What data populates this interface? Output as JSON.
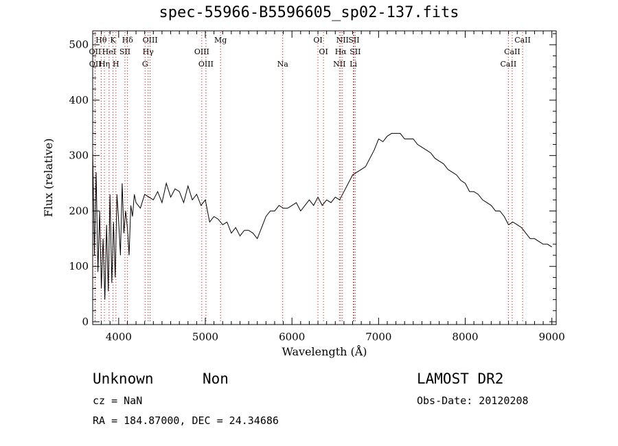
{
  "title": "spec-55966-B5596605_sp02-137.fits",
  "info": {
    "classification": "Unknown",
    "subclass": "Non",
    "survey": "LAMOST DR2",
    "cz": "cz = NaN",
    "obs_date": "Obs-Date: 20120208",
    "radec": "RA =  184.87000, DEC =   24.34686"
  },
  "colors": {
    "line_marker": "#cc0000",
    "spectrum": "#000000"
  },
  "chart_data": {
    "type": "line",
    "title": "spec-55966-B5596605_sp02-137.fits",
    "xlabel": "Wavelength (Å)",
    "ylabel": "Flux (relative)",
    "xlim": [
      3700,
      9050
    ],
    "ylim": [
      -5,
      525
    ],
    "xticks": [
      4000,
      5000,
      6000,
      7000,
      8000,
      9000
    ],
    "yticks": [
      0,
      100,
      200,
      300,
      400,
      500
    ],
    "grid": false,
    "series": [
      {
        "x": [
          3700,
          3720,
          3740,
          3760,
          3780,
          3800,
          3820,
          3840,
          3860,
          3880,
          3900,
          3920,
          3940,
          3960,
          3980,
          4000,
          4020,
          4040,
          4060,
          4080,
          4100,
          4120,
          4140,
          4160,
          4180,
          4200,
          4250,
          4300,
          4350,
          4400,
          4450,
          4500,
          4550,
          4600,
          4650,
          4700,
          4750,
          4800,
          4850,
          4900,
          4950,
          5000,
          5050,
          5100,
          5150,
          5200,
          5250,
          5300,
          5350,
          5400,
          5450,
          5500,
          5550,
          5600,
          5650,
          5700,
          5750,
          5800,
          5850,
          5900,
          5950,
          6000,
          6050,
          6100,
          6150,
          6200,
          6250,
          6300,
          6350,
          6400,
          6450,
          6500,
          6550,
          6600,
          6650,
          6700,
          6750,
          6800,
          6850,
          6900,
          6950,
          7000,
          7050,
          7100,
          7150,
          7200,
          7250,
          7300,
          7350,
          7400,
          7450,
          7500,
          7550,
          7600,
          7650,
          7700,
          7750,
          7800,
          7850,
          7900,
          7950,
          8000,
          8050,
          8100,
          8150,
          8200,
          8250,
          8300,
          8350,
          8400,
          8450,
          8500,
          8550,
          8600,
          8650,
          8700,
          8750,
          8800,
          8850,
          8900,
          8950,
          9000
        ],
        "y": [
          310,
          120,
          270,
          90,
          200,
          60,
          150,
          40,
          175,
          55,
          230,
          70,
          180,
          80,
          230,
          180,
          120,
          250,
          160,
          200,
          170,
          120,
          210,
          190,
          230,
          215,
          205,
          230,
          225,
          220,
          235,
          215,
          250,
          225,
          240,
          235,
          215,
          245,
          220,
          230,
          210,
          220,
          180,
          190,
          185,
          175,
          180,
          160,
          170,
          155,
          165,
          165,
          160,
          150,
          170,
          190,
          200,
          200,
          210,
          205,
          205,
          210,
          215,
          200,
          210,
          220,
          210,
          225,
          210,
          220,
          215,
          225,
          220,
          235,
          250,
          265,
          270,
          275,
          280,
          295,
          310,
          330,
          325,
          335,
          340,
          340,
          340,
          330,
          330,
          330,
          320,
          315,
          310,
          305,
          295,
          290,
          285,
          275,
          270,
          265,
          255,
          250,
          235,
          235,
          230,
          220,
          215,
          210,
          200,
          200,
          190,
          175,
          180,
          175,
          170,
          160,
          150,
          150,
          145,
          140,
          140,
          135
        ]
      }
    ],
    "line_labels": [
      {
        "text": "Hθ",
        "x": 3798,
        "row": 0
      },
      {
        "text": "K",
        "x": 3934,
        "row": 0
      },
      {
        "text": "Hδ",
        "x": 4102,
        "row": 0
      },
      {
        "text": "OIII",
        "x": 4363,
        "row": 0
      },
      {
        "text": "Mg",
        "x": 5175,
        "row": 0
      },
      {
        "text": "OI",
        "x": 6300,
        "row": 0
      },
      {
        "text": "NII",
        "x": 6583,
        "row": 0
      },
      {
        "text": "SII",
        "x": 6716,
        "row": 0
      },
      {
        "text": "CaII",
        "x": 8662,
        "row": 0
      },
      {
        "text": "OII",
        "x": 3727,
        "row": 1
      },
      {
        "text": "HeI",
        "x": 3889,
        "row": 1
      },
      {
        "text": "SII",
        "x": 4072,
        "row": 1
      },
      {
        "text": "Hγ",
        "x": 4340,
        "row": 1
      },
      {
        "text": "OIII",
        "x": 4959,
        "row": 1
      },
      {
        "text": "OI",
        "x": 6364,
        "row": 1
      },
      {
        "text": "Hα",
        "x": 6563,
        "row": 1
      },
      {
        "text": "SII",
        "x": 6731,
        "row": 1
      },
      {
        "text": "CaII",
        "x": 8542,
        "row": 1
      },
      {
        "text": "OII",
        "x": 3729,
        "row": 2
      },
      {
        "text": "Hη",
        "x": 3835,
        "row": 2
      },
      {
        "text": "H",
        "x": 3968,
        "row": 2
      },
      {
        "text": "G",
        "x": 4305,
        "row": 2
      },
      {
        "text": "OIII",
        "x": 5007,
        "row": 2
      },
      {
        "text": "Na",
        "x": 5893,
        "row": 2
      },
      {
        "text": "NII",
        "x": 6548,
        "row": 2
      },
      {
        "text": "Li",
        "x": 6708,
        "row": 2
      },
      {
        "text": "CaII",
        "x": 8498,
        "row": 2
      }
    ]
  }
}
